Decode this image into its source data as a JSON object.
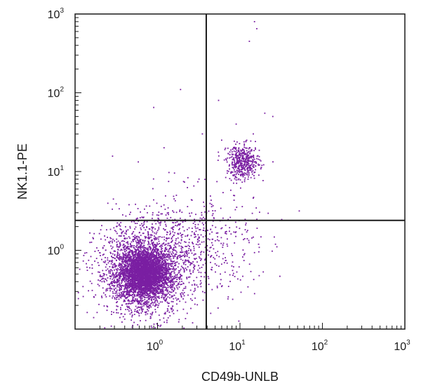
{
  "chart_data": {
    "type": "scatter",
    "title": "",
    "xlabel": "CD49b-UNLB",
    "ylabel": "NK1.1-PE",
    "x_scale": "log",
    "y_scale": "log",
    "xlim": [
      0.1,
      1000
    ],
    "ylim": [
      0.1,
      1000
    ],
    "x_ticks": [
      {
        "base": "10",
        "exp": "0",
        "value": 1
      },
      {
        "base": "10",
        "exp": "1",
        "value": 10
      },
      {
        "base": "10",
        "exp": "2",
        "value": 100
      },
      {
        "base": "10",
        "exp": "3",
        "value": 1000
      }
    ],
    "y_ticks": [
      {
        "base": "10",
        "exp": "0",
        "value": 1
      },
      {
        "base": "10",
        "exp": "1",
        "value": 10
      },
      {
        "base": "10",
        "exp": "2",
        "value": 100
      },
      {
        "base": "10",
        "exp": "3",
        "value": 1000
      }
    ],
    "quadrant_gates": {
      "x": 3.9,
      "y": 2.4
    },
    "grid": false,
    "point_color": "#7a1fa2",
    "populations": [
      {
        "label": "",
        "center": [
          0.7,
          0.5
        ],
        "spread_decades": [
          0.15,
          0.16
        ],
        "count": 3200
      },
      {
        "label": "",
        "center": [
          0.65,
          0.55
        ],
        "spread_decades": [
          0.28,
          0.3
        ],
        "count": 1600
      },
      {
        "label": "",
        "center": [
          11,
          13
        ],
        "spread_decades": [
          0.1,
          0.11
        ],
        "count": 450
      },
      {
        "label": "",
        "center": [
          2.5,
          1.2
        ],
        "spread_decades": [
          0.4,
          0.35
        ],
        "count": 600
      }
    ],
    "sparse_points": [
      [
        15,
        800
      ],
      [
        16,
        650
      ],
      [
        13,
        450
      ],
      [
        1.9,
        110
      ],
      [
        0.9,
        65
      ],
      [
        20,
        55
      ],
      [
        5.5,
        80
      ],
      [
        25,
        50
      ],
      [
        9,
        40
      ],
      [
        3.5,
        30
      ],
      [
        1.2,
        20
      ],
      [
        6,
        25
      ]
    ]
  }
}
